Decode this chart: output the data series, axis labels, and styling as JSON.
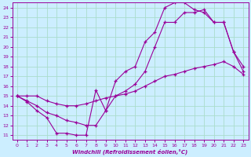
{
  "xlabel": "Windchill (Refroidissement éolien,°C)",
  "bg_color": "#cceeff",
  "line_color": "#990099",
  "grid_color": "#aaddcc",
  "xlim": [
    -0.5,
    23.5
  ],
  "ylim": [
    10.5,
    24.5
  ],
  "xticks": [
    0,
    1,
    2,
    3,
    4,
    5,
    6,
    7,
    8,
    9,
    10,
    11,
    12,
    13,
    14,
    15,
    16,
    17,
    18,
    19,
    20,
    21,
    22,
    23
  ],
  "yticks": [
    11,
    12,
    13,
    14,
    15,
    16,
    17,
    18,
    19,
    20,
    21,
    22,
    23,
    24
  ],
  "series": [
    {
      "x": [
        0,
        1,
        2,
        3,
        4,
        5,
        6,
        7,
        8,
        9,
        10,
        11,
        12,
        13,
        14,
        15,
        16,
        17,
        18,
        19,
        20,
        21,
        22,
        23
      ],
      "y": [
        15,
        14.4,
        13.5,
        12.8,
        11.2,
        11.2,
        11.0,
        11.0,
        15.6,
        13.5,
        16.5,
        17.5,
        18.0,
        20.5,
        21.5,
        24.0,
        24.5,
        24.5,
        23.8,
        23.5,
        22.5,
        22.5,
        19.5,
        18.0
      ]
    },
    {
      "x": [
        0,
        1,
        2,
        3,
        4,
        5,
        6,
        7,
        8,
        9,
        10,
        11,
        12,
        13,
        14,
        15,
        16,
        17,
        18,
        19,
        20,
        21,
        22,
        23
      ],
      "y": [
        15,
        14.5,
        14.0,
        13.3,
        13.0,
        12.5,
        12.3,
        12.0,
        12.0,
        13.5,
        15.0,
        15.5,
        16.2,
        17.5,
        20.0,
        22.5,
        22.5,
        23.5,
        23.5,
        23.8,
        22.5,
        22.5,
        19.5,
        17.5
      ]
    },
    {
      "x": [
        0,
        1,
        2,
        3,
        4,
        5,
        6,
        7,
        8,
        9,
        10,
        11,
        12,
        13,
        14,
        15,
        16,
        17,
        18,
        19,
        20,
        21,
        22,
        23
      ],
      "y": [
        15,
        15.0,
        15.0,
        14.5,
        14.2,
        14.0,
        14.0,
        14.2,
        14.5,
        14.8,
        15.0,
        15.2,
        15.5,
        16.0,
        16.5,
        17.0,
        17.2,
        17.5,
        17.8,
        18.0,
        18.2,
        18.5,
        18.0,
        17.2
      ]
    }
  ]
}
